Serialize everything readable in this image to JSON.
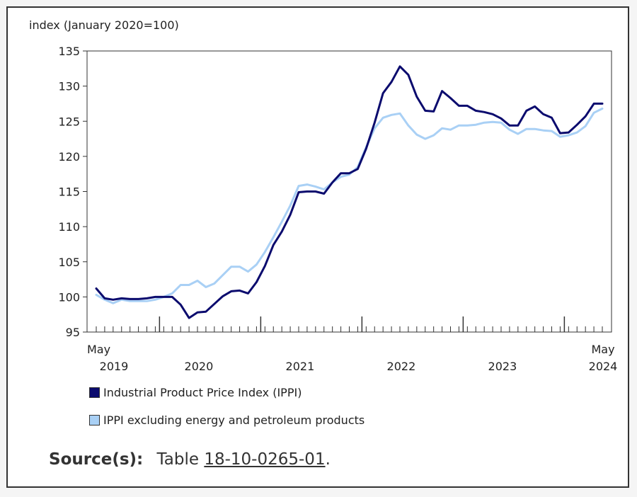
{
  "chart_data": {
    "type": "line",
    "ylabel": "index (January 2020=100)",
    "ylim": [
      95,
      135
    ],
    "yticks": [
      95,
      100,
      105,
      110,
      115,
      120,
      125,
      130,
      135
    ],
    "x_start": "2019-05",
    "x_end": "2024-05",
    "x_tick_labels": [
      {
        "month": "2019-05",
        "text": "May"
      },
      {
        "month": "2019-05",
        "text": "2019"
      },
      {
        "month": "2020-06",
        "text": "2020"
      },
      {
        "month": "2021-06",
        "text": "2021"
      },
      {
        "month": "2022-06",
        "text": "2022"
      },
      {
        "month": "2023-06",
        "text": "2023"
      },
      {
        "month": "2024-05",
        "text": "May"
      },
      {
        "month": "2024-05",
        "text": "2024"
      }
    ],
    "series": [
      {
        "name": "Industrial Product Price Index (IPPI)",
        "color": "#0b0b6e",
        "values": [
          101.2,
          99.8,
          99.6,
          99.8,
          99.7,
          99.7,
          99.8,
          100.0,
          100.0,
          100.0,
          98.9,
          97.0,
          97.8,
          97.9,
          99.0,
          100.1,
          100.8,
          100.9,
          100.5,
          102.1,
          104.4,
          107.4,
          109.3,
          111.7,
          114.9,
          115.0,
          115.0,
          114.7,
          116.3,
          117.6,
          117.6,
          118.2,
          121.1,
          124.8,
          129.0,
          130.6,
          132.8,
          131.6,
          128.5,
          126.5,
          126.4,
          129.3,
          128.3,
          127.2,
          127.2,
          126.5,
          126.3,
          126.0,
          125.4,
          124.4,
          124.4,
          126.5,
          127.1,
          126.0,
          125.5,
          123.3,
          123.4,
          124.5,
          125.7,
          127.5,
          127.5
        ]
      },
      {
        "name": "IPPI excluding energy and petroleum products",
        "color": "#a9d0f5",
        "values": [
          100.3,
          99.6,
          99.1,
          99.6,
          99.4,
          99.4,
          99.4,
          99.6,
          100.0,
          100.5,
          101.7,
          101.7,
          102.3,
          101.4,
          101.9,
          103.1,
          104.3,
          104.3,
          103.6,
          104.6,
          106.4,
          108.5,
          110.7,
          113.0,
          115.8,
          116.0,
          115.7,
          115.3,
          116.3,
          117.1,
          117.4,
          118.5,
          121.3,
          124.0,
          125.5,
          125.9,
          126.1,
          124.4,
          123.1,
          122.5,
          123.0,
          124.0,
          123.8,
          124.4,
          124.4,
          124.5,
          124.8,
          124.9,
          124.8,
          123.8,
          123.2,
          123.9,
          123.9,
          123.7,
          123.6,
          122.8,
          123.0,
          123.4,
          124.3,
          126.2,
          126.8
        ]
      }
    ],
    "grid": false
  },
  "legend": {
    "items": [
      {
        "label": "Industrial Product Price Index (IPPI)",
        "color": "#0b0b6e"
      },
      {
        "label": "IPPI excluding energy and petroleum products",
        "color": "#a9d0f5"
      }
    ]
  },
  "source": {
    "label": "Source(s):",
    "prefix": "Table",
    "link_text": "18-10-0265-01",
    "suffix": "."
  }
}
